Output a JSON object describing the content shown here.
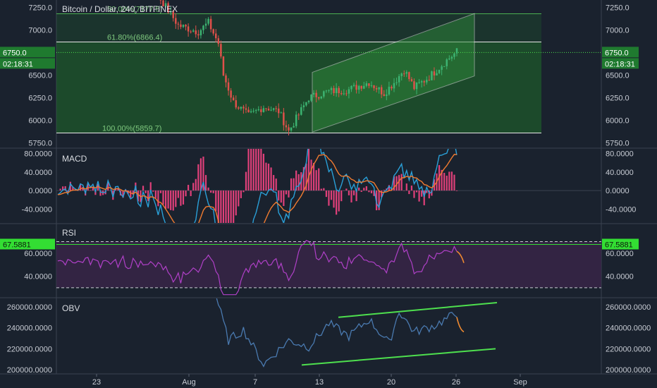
{
  "chart_data": [
    {
      "type": "candlestick",
      "title": "Bitcoin / Dollar, 240, BITFINEX",
      "yticks": [
        "7250.0",
        "7000.0",
        "6500.0",
        "6250.0",
        "6000.0",
        "5750.0"
      ],
      "ylim": [
        5700,
        7330
      ],
      "current_price_label": "6750.0",
      "current_price": 6750,
      "countdown_label": "02:18:31",
      "fib_levels": [
        {
          "label": "50.00%(7177.5)",
          "value": 7177.5
        },
        {
          "label": "61.80%(6866.4)",
          "value": 6866.4
        },
        {
          "label": "100.00%(5859.7)",
          "value": 5859.7
        }
      ],
      "channel": {
        "lower_start": 5870,
        "lower_end": 6490,
        "upper_start": 6530,
        "upper_end": 7180
      },
      "colors": {
        "up": "#3cb371",
        "down": "#e0504a",
        "fill": "#1f6b2a"
      }
    },
    {
      "type": "line",
      "title": "MACD",
      "yticks": [
        "80.0000",
        "40.0000",
        "0.0000",
        "-40.0000"
      ],
      "ylim": [
        -70,
        90
      ],
      "colors": {
        "histogram": "#e0407a",
        "macd": "#2aa0d8",
        "signal": "#f07b30"
      }
    },
    {
      "type": "line",
      "title": "RSI",
      "yticks": [
        "60.0000",
        "40.0000"
      ],
      "ylim": [
        22,
        85
      ],
      "current_label": "67.5881",
      "current": 67.5881,
      "bands": [
        70,
        30
      ],
      "colors": {
        "line": "#b040c8",
        "fill": "#3a2548",
        "badge": "#33dd33"
      }
    },
    {
      "type": "line",
      "title": "OBV",
      "yticks": [
        "260000.0000",
        "240000.0000",
        "220000.0000",
        "200000.0000"
      ],
      "ylim": [
        196000,
        268000
      ],
      "colors": {
        "line": "#4a7ab0",
        "trend": "#4ee04e",
        "projection": "#f08a30"
      }
    }
  ],
  "x_axis": {
    "ticks": [
      "23",
      "Aug",
      "7",
      "13",
      "20",
      "26",
      "Sep"
    ]
  }
}
